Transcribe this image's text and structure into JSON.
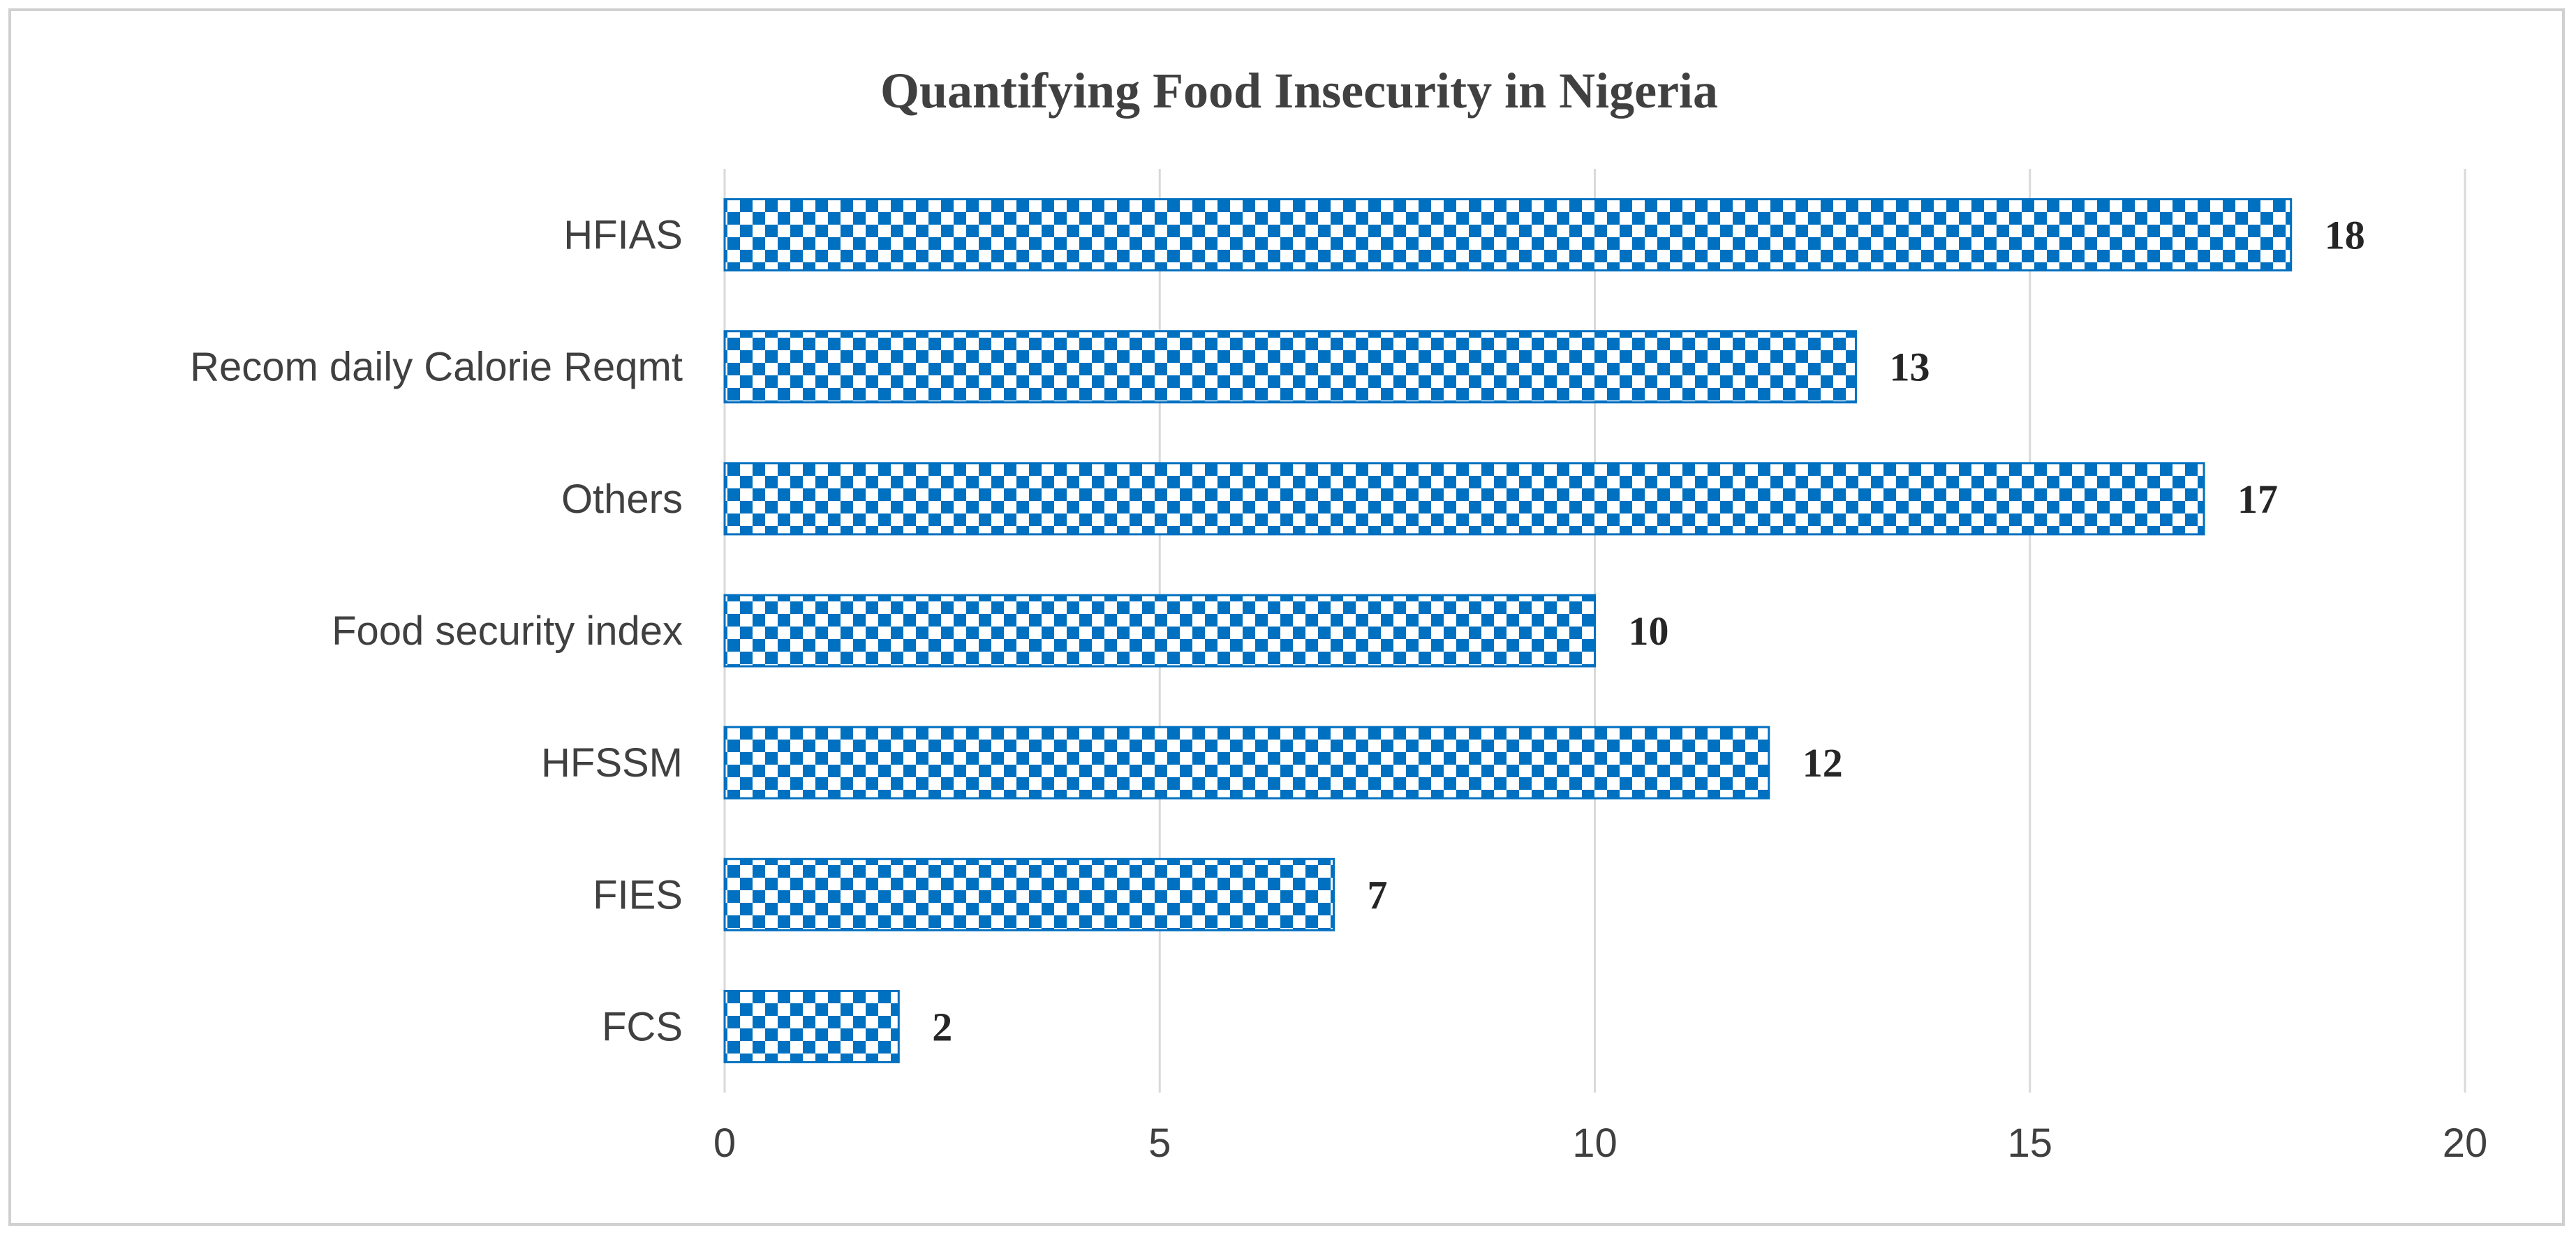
{
  "chart_data": {
    "type": "bar",
    "orientation": "horizontal",
    "title": "Quantifying  Food Insecurity  in Nigeria",
    "categories": [
      "HFIAS",
      "Recom daily Calorie Reqmt",
      "Others",
      "Food security index",
      "HFSSM",
      "FIES",
      "FCS"
    ],
    "values": [
      18,
      13,
      17,
      10,
      12,
      7,
      2
    ],
    "xlim": [
      0,
      20
    ],
    "xticks": [
      0,
      5,
      10,
      15,
      20
    ],
    "xlabel": "",
    "ylabel": "",
    "grid": "vertical",
    "legend": "none",
    "colors": {
      "bar_fill": "#0070c0",
      "bar_pattern_light": "#ffffff",
      "gridline": "#d9d9d9",
      "text": "#404040",
      "data_label": "#262626"
    }
  }
}
